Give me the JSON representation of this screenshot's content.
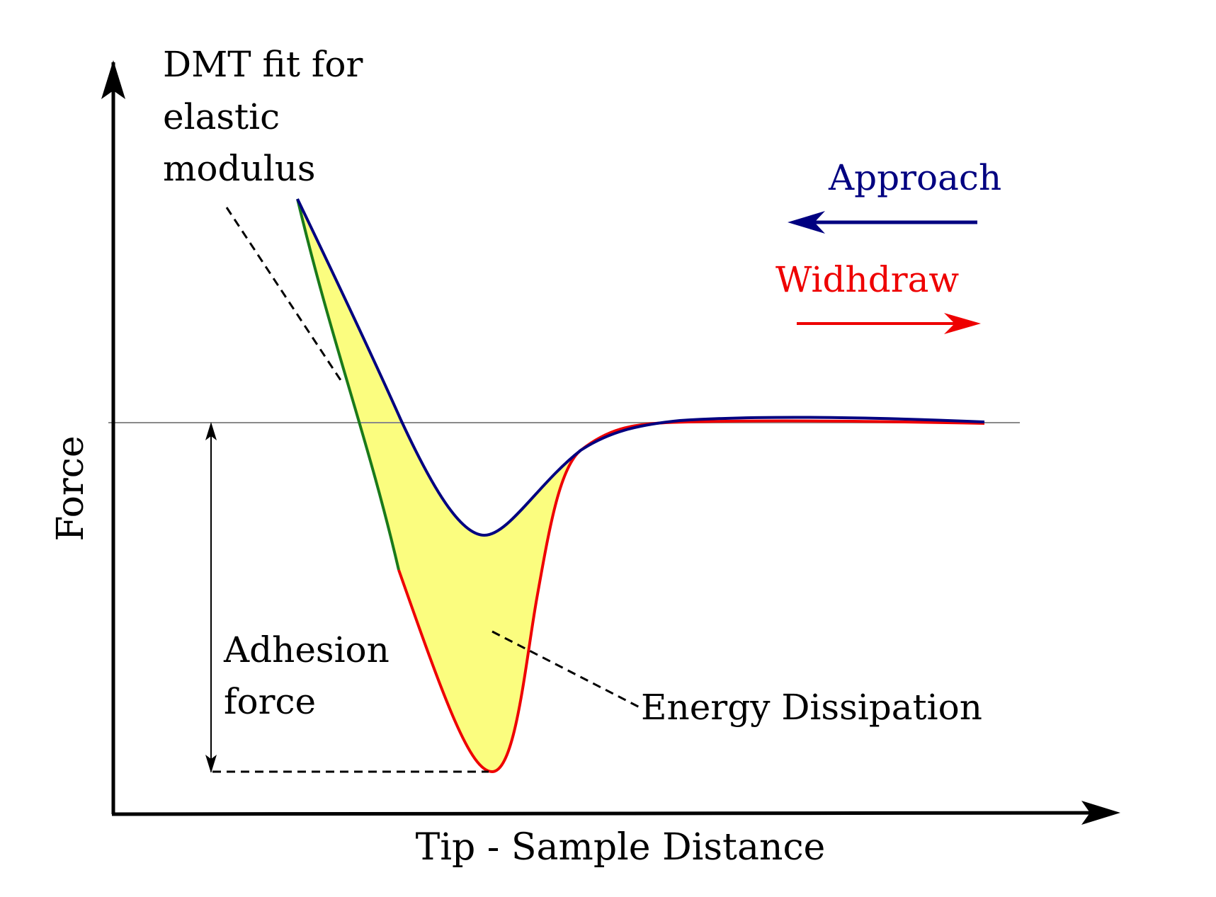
{
  "colors": {
    "approach": "#000080",
    "withdraw": "#ee0000",
    "dmt": "#1a7a1a",
    "energy_fill": "#fbfd7f",
    "axis": "#000000",
    "zero_line": "#8a8a8a"
  },
  "labels": {
    "y_axis": "Force",
    "x_axis": "Tip - Sample Distance",
    "dmt_line1": "DMT fit for",
    "dmt_line2": "elastic",
    "dmt_line3": "modulus",
    "approach": "Approach",
    "withdraw": "Widhdraw",
    "adhesion_line1": "Adhesion",
    "adhesion_line2": "force",
    "energy": "Energy Dissipation"
  }
}
